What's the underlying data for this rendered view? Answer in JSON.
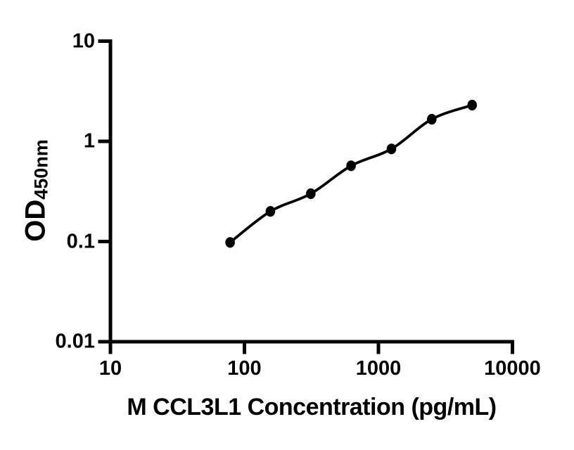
{
  "figure": {
    "background_color": "#ffffff",
    "foreground_color": "#000000"
  },
  "chart_data": {
    "type": "scatter",
    "subtype": "ELISA standard curve, log-log axes, filled circles with smooth fitted line",
    "title": "",
    "xlabel": "M CCL3L1 Concentration (pg/mL)",
    "ylabel_main": "OD",
    "ylabel_sub": "450nm",
    "x_scale": "log10",
    "y_scale": "log10",
    "xlim": [
      10,
      10000
    ],
    "ylim": [
      0.01,
      10
    ],
    "x_ticks": [
      10,
      100,
      1000,
      10000
    ],
    "x_tick_labels": [
      "10",
      "100",
      "1000",
      "10000"
    ],
    "y_ticks": [
      10,
      1,
      0.1,
      0.01
    ],
    "y_tick_labels": [
      "10",
      "1",
      "0.1",
      "0.01"
    ],
    "grid": false,
    "legend": "none",
    "series": [
      {
        "name": "standard-curve",
        "marker": "filled-circle",
        "color": "#000000",
        "x": [
          78.1,
          156.3,
          312.5,
          625,
          1250,
          2500,
          5000
        ],
        "y": [
          0.098,
          0.2,
          0.3,
          0.57,
          0.84,
          1.66,
          2.3
        ]
      }
    ]
  }
}
